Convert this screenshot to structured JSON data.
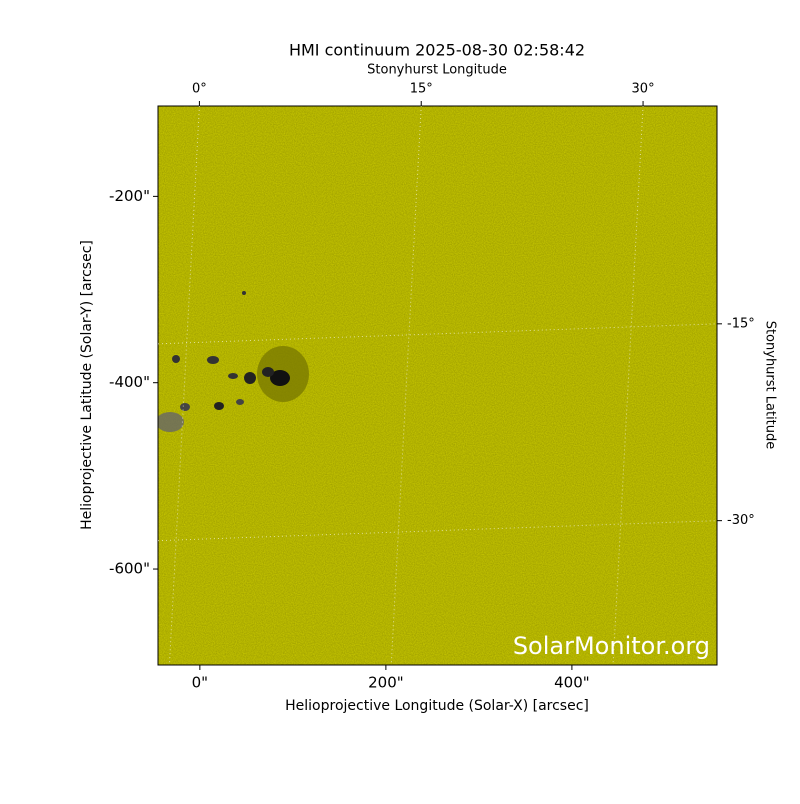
{
  "chart_data": {
    "type": "image",
    "title": "HMI continuum 2025-08-30 02:58:42",
    "xlabel": "Helioprojective Longitude (Solar-X) [arcsec]",
    "ylabel": "Helioprojective Latitude (Solar-Y) [arcsec]",
    "x2label": "Stonyhurst Longitude",
    "y2label": "Stonyhurst Latitude",
    "watermark": "SolarMonitor.org",
    "color": "#cccc00",
    "xlim": [
      -45,
      556
    ],
    "ylim": [
      -703,
      -103
    ],
    "xticks": [
      {
        "value": 0,
        "label": "0\""
      },
      {
        "value": 200,
        "label": "200\""
      },
      {
        "value": 400,
        "label": "400\""
      }
    ],
    "yticks": [
      {
        "value": -200,
        "label": "-200\""
      },
      {
        "value": -400,
        "label": "-400\""
      },
      {
        "value": -600,
        "label": "-600\""
      }
    ],
    "x2lim": [
      -2.8,
      35
    ],
    "x2ticks": [
      {
        "value": 0,
        "label": "0°"
      },
      {
        "value": 15,
        "label": "15°"
      },
      {
        "value": 30,
        "label": "30°"
      }
    ],
    "y2lim": [
      1.6,
      -41
    ],
    "y2ticks": [
      {
        "value": -15,
        "label": "-15°"
      },
      {
        "value": -30,
        "label": "-30°"
      }
    ],
    "grid": true
  }
}
